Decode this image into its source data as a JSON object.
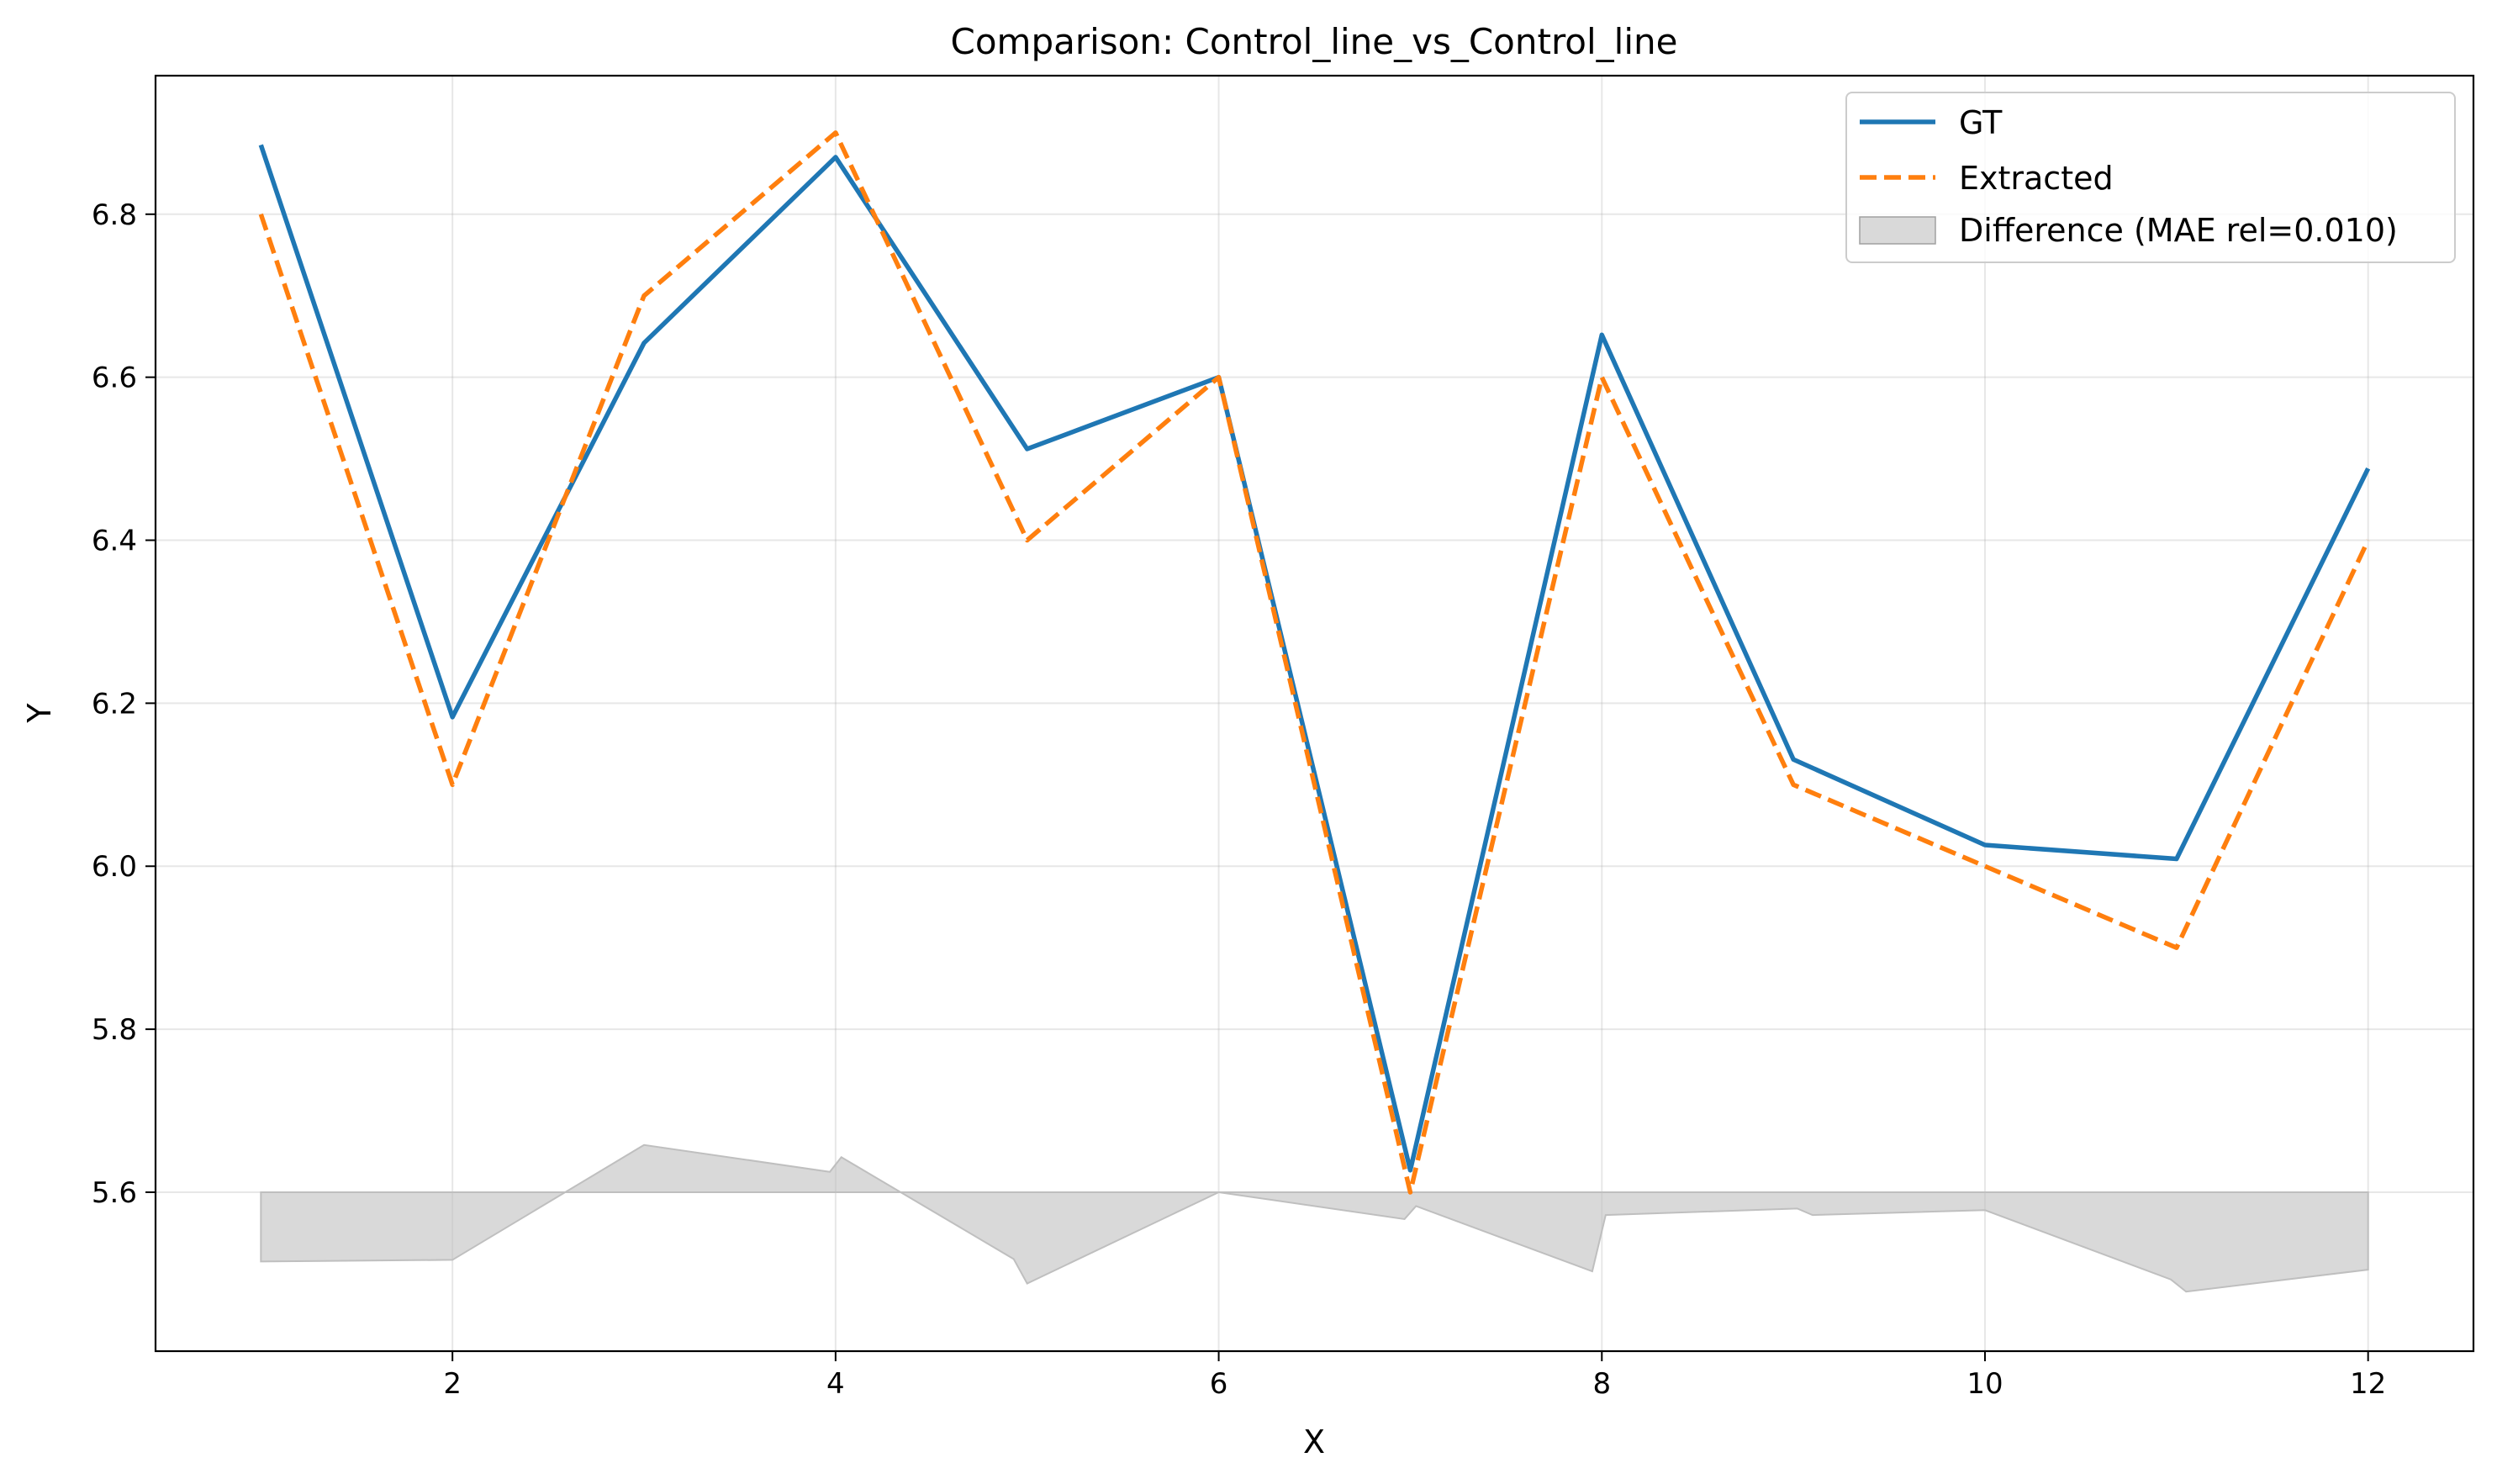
{
  "chart_data": {
    "type": "line",
    "title": "Comparison: Control_line_vs_Control_line",
    "xlabel": "X",
    "ylabel": "Y",
    "xlim": [
      0.45,
      12.55
    ],
    "ylim": [
      5.405,
      6.97
    ],
    "xticks": [
      2,
      4,
      6,
      8,
      10,
      12
    ],
    "xtick_labels": [
      "2",
      "4",
      "6",
      "8",
      "10",
      "12"
    ],
    "yticks": [
      5.6,
      5.8,
      6.0,
      6.2,
      6.4,
      6.6,
      6.8
    ],
    "ytick_labels": [
      "5.6",
      "5.8",
      "6.0",
      "6.2",
      "6.4",
      "6.6",
      "6.8"
    ],
    "grid": true,
    "legend_position": "top-right",
    "x": [
      1,
      2,
      3,
      4,
      5,
      6,
      7,
      8,
      9,
      10,
      11,
      12
    ],
    "series": [
      {
        "name": "GT",
        "style": "solid",
        "color": "#1f77b4",
        "values": [
          6.885,
          6.183,
          6.642,
          6.87,
          6.512,
          6.6,
          5.627,
          6.652,
          6.131,
          6.026,
          6.009,
          6.488
        ]
      },
      {
        "name": "Extracted",
        "style": "dashed",
        "color": "#ff7f0e",
        "values": [
          6.8,
          6.1,
          6.7,
          6.9,
          6.4,
          6.6,
          5.6,
          6.6,
          6.1,
          6.0,
          5.9,
          6.4
        ]
      }
    ],
    "difference": {
      "name": "Difference (MAE rel=0.010)",
      "color": "#bfbfbf",
      "baseline": 5.6,
      "points": [
        [
          1,
          5.515
        ],
        [
          2,
          5.517
        ],
        [
          3,
          5.658
        ],
        [
          3.97,
          5.625
        ],
        [
          4.03,
          5.643
        ],
        [
          4.93,
          5.518
        ],
        [
          5,
          5.488
        ],
        [
          6,
          5.6
        ],
        [
          6.97,
          5.567
        ],
        [
          7.03,
          5.583
        ],
        [
          7.95,
          5.503
        ],
        [
          8.02,
          5.572
        ],
        [
          9.02,
          5.58
        ],
        [
          9.1,
          5.572
        ],
        [
          10,
          5.578
        ],
        [
          10.97,
          5.493
        ],
        [
          11.05,
          5.478
        ],
        [
          12,
          5.505
        ]
      ]
    }
  }
}
